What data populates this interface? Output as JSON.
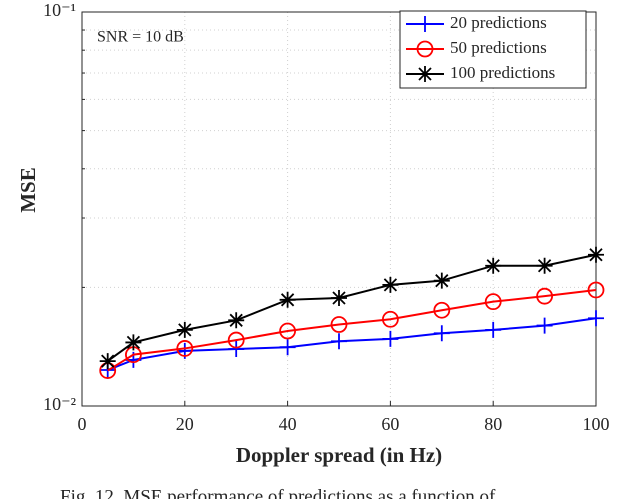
{
  "chart_data": {
    "type": "line",
    "annotation": "SNR = 10 dB",
    "xlabel": "Doppler spread (in Hz)",
    "ylabel": "MSE",
    "caption": "Fig. 12. MSE performance of predictions as a function of",
    "x": [
      5,
      10,
      20,
      30,
      40,
      50,
      60,
      70,
      80,
      90,
      100
    ],
    "series": [
      {
        "name": "20 predictions",
        "color": "#0000ff",
        "marker": "plus",
        "values": [
          0.01234,
          0.01309,
          0.0138,
          0.01395,
          0.0141,
          0.0146,
          0.0148,
          0.0153,
          0.0156,
          0.016,
          0.0167
        ]
      },
      {
        "name": "50 predictions",
        "color": "#ff0000",
        "marker": "circle",
        "values": [
          0.0123,
          0.0135,
          0.014,
          0.0147,
          0.0155,
          0.0161,
          0.0166,
          0.0175,
          0.0184,
          0.019,
          0.0197
        ]
      },
      {
        "name": "100 predictions",
        "color": "#000000",
        "marker": "asterisk",
        "values": [
          0.013,
          0.0145,
          0.0156,
          0.0165,
          0.0186,
          0.0188,
          0.0203,
          0.0208,
          0.0227,
          0.0227,
          0.0242
        ]
      }
    ],
    "xlim": [
      0,
      100
    ],
    "xticks": [
      0,
      20,
      40,
      60,
      80,
      100
    ],
    "ylim": [
      0.01,
      0.1
    ],
    "ylog": true,
    "yticks": [
      {
        "value": 0.01,
        "label": "10⁻²"
      },
      {
        "value": 0.1,
        "label": "10⁻¹"
      }
    ],
    "yminor": [
      0.02,
      0.03,
      0.04,
      0.05,
      0.06,
      0.07,
      0.08,
      0.09
    ],
    "grid": true,
    "legend": "upper right"
  }
}
